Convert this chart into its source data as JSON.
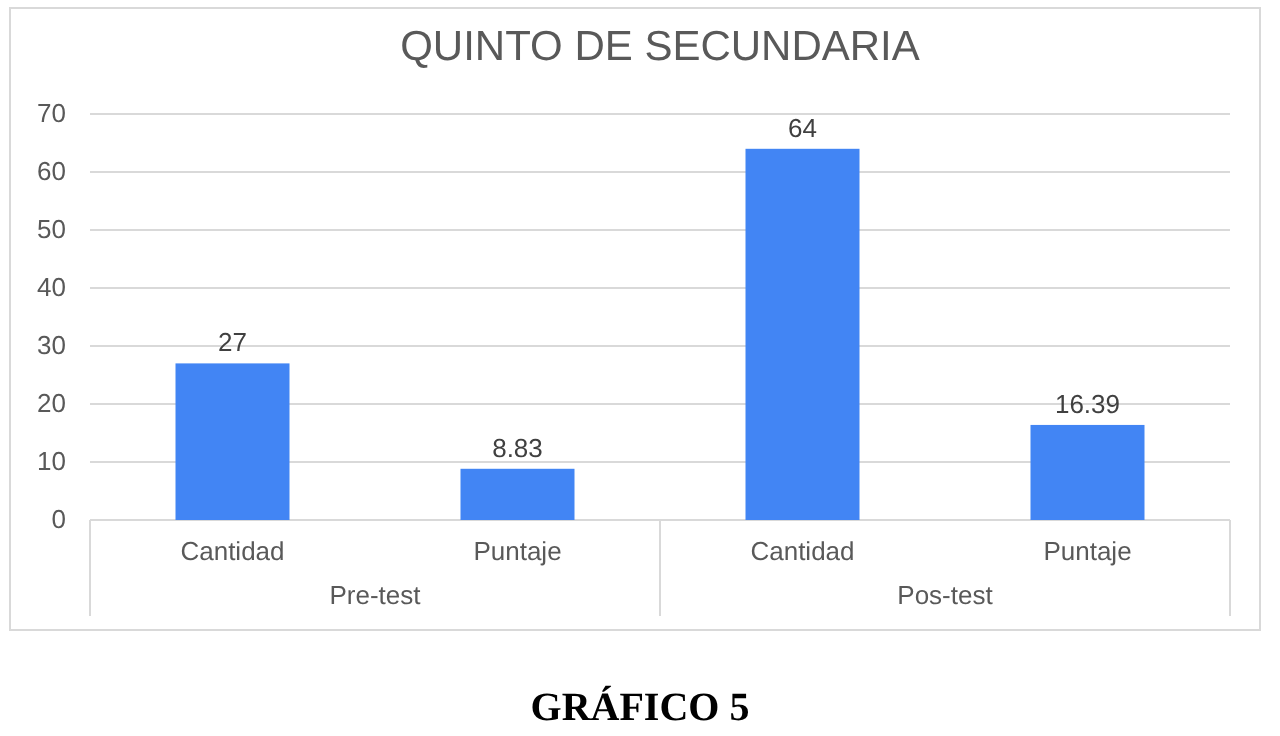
{
  "chart_data": {
    "type": "bar",
    "title": "QUINTO DE SECUNDARIA",
    "categories": [
      "Cantidad",
      "Puntaje",
      "Cantidad",
      "Puntaje"
    ],
    "values": [
      27,
      8.83,
      64,
      16.39
    ],
    "color": "#4285f4",
    "ylim": [
      0,
      70
    ],
    "yticks": [
      0,
      10,
      20,
      30,
      40,
      50,
      60,
      70
    ],
    "grid": "y",
    "data_labels": true,
    "annotations": [
      "Pre-test",
      "Pos-test",
      "GRÁFICO 5"
    ]
  }
}
